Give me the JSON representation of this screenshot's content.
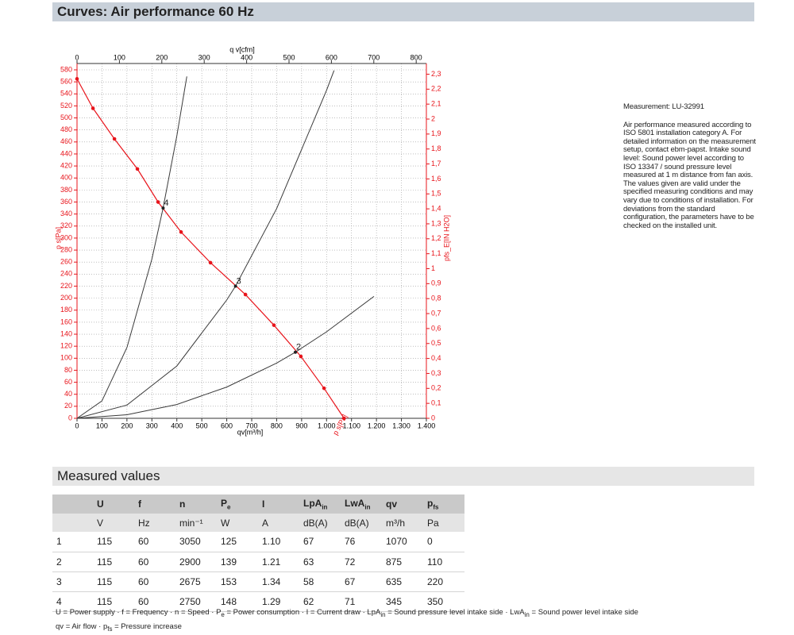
{
  "header": {
    "title": "Curves: Air performance 60 Hz"
  },
  "chart_data": {
    "type": "line",
    "x_label": "qv[m³/h]",
    "x2_label": "q v[cfm]",
    "y_label": "p s[Pa]",
    "y2_label": "pfs_E[IN H2O]",
    "xlim": [
      0,
      1400
    ],
    "xticks": [
      0,
      100,
      200,
      300,
      400,
      500,
      600,
      700,
      800,
      900,
      {
        "value": 1000,
        "label": "1.000"
      },
      {
        "value": 1100,
        "label": "1.100"
      },
      {
        "value": 1200,
        "label": "1.200"
      },
      {
        "value": 1300,
        "label": "1.300"
      },
      {
        "value": 1400,
        "label": "1.400"
      }
    ],
    "x2lim": [
      0,
      824
    ],
    "x2ticks": [
      0,
      100,
      200,
      300,
      400,
      500,
      600,
      700,
      800
    ],
    "ylim": [
      0,
      580
    ],
    "yticks": [
      0,
      20,
      40,
      60,
      80,
      100,
      120,
      140,
      160,
      180,
      200,
      220,
      240,
      260,
      280,
      300,
      320,
      340,
      360,
      380,
      400,
      420,
      440,
      460,
      480,
      500,
      520,
      540,
      560,
      580
    ],
    "y2lim": [
      0,
      2.329
    ],
    "y2ticks": [
      0,
      {
        "value": 0.1,
        "label": "0,1"
      },
      {
        "value": 0.2,
        "label": "0,2"
      },
      {
        "value": 0.3,
        "label": "0,3"
      },
      {
        "value": 0.4,
        "label": "0,4"
      },
      {
        "value": 0.5,
        "label": "0,5"
      },
      {
        "value": 0.6,
        "label": "0,6"
      },
      {
        "value": 0.7,
        "label": "0,7"
      },
      {
        "value": 0.8,
        "label": "0,8"
      },
      {
        "value": 0.9,
        "label": "0,9"
      },
      1,
      {
        "value": 1.1,
        "label": "1,1"
      },
      {
        "value": 1.2,
        "label": "1,2"
      },
      {
        "value": 1.3,
        "label": "1,3"
      },
      {
        "value": 1.4,
        "label": "1,4"
      },
      {
        "value": 1.5,
        "label": "1,5"
      },
      {
        "value": 1.6,
        "label": "1,6"
      },
      {
        "value": 1.7,
        "label": "1,7"
      },
      {
        "value": 1.8,
        "label": "1,8"
      },
      {
        "value": 1.9,
        "label": "1,9"
      },
      2,
      {
        "value": 2.1,
        "label": "2,1"
      },
      {
        "value": 2.2,
        "label": "2,2"
      },
      {
        "value": 2.3,
        "label": "2,3"
      }
    ],
    "grid": true,
    "series": [
      {
        "name": "p s[Pa]",
        "color": "#e8141b",
        "markers": true,
        "x": [
          0,
          64,
          150,
          242,
          325,
          417,
          535,
          675,
          789,
          897,
          990,
          1070
        ],
        "values": [
          565,
          516,
          465,
          415,
          360,
          310,
          259,
          206,
          155,
          103,
          50,
          0
        ]
      },
      {
        "color": "#3a3a3a",
        "x": [
          0,
          100,
          200,
          300,
          345,
          400,
          440
        ],
        "values": [
          0,
          29,
          118,
          265,
          350,
          470,
          569
        ]
      },
      {
        "color": "#3a3a3a",
        "x": [
          0,
          200,
          400,
          600,
          635,
          800,
          1000,
          1030
        ],
        "values": [
          0,
          22,
          87,
          197,
          220,
          349,
          546,
          579
        ]
      },
      {
        "color": "#3a3a3a",
        "x": [
          0,
          200,
          400,
          600,
          800,
          875,
          1000,
          1190
        ],
        "values": [
          0,
          6,
          23,
          52,
          92,
          110,
          144,
          203
        ]
      }
    ],
    "operating_points": [
      {
        "label": "4",
        "x": 345,
        "y": 350
      },
      {
        "label": "3",
        "x": 635,
        "y": 220
      },
      {
        "label": "2",
        "x": 875,
        "y": 110
      }
    ]
  },
  "notes": {
    "measurement": "Measurement: LU-32991",
    "text": "Air performance measured according to ISO 5801 installation category A. For detailed information on the measurement setup, contact ebm-papst. Intake sound level: Sound power level according to ISO 13347 / sound pressure level measured at 1 m distance from fan axis. The values given are valid under the specified measuring conditions and may vary due to conditions of installation. For deviations from the standard configuration, the parameters have to be checked on the installed unit."
  },
  "measured": {
    "title": "Measured values",
    "columns": [
      {
        "main": "U"
      },
      {
        "main": "f"
      },
      {
        "main": "n"
      },
      {
        "main": "P",
        "sub": "e"
      },
      {
        "main": "I"
      },
      {
        "main": "LpA",
        "sub": "in"
      },
      {
        "main": "LwA",
        "sub": "in"
      },
      {
        "main": "qv"
      },
      {
        "main": "p",
        "sub": "fs"
      }
    ],
    "units": [
      "V",
      "Hz",
      "min⁻¹",
      "W",
      "A",
      "dB(A)",
      "dB(A)",
      "m³/h",
      "Pa"
    ],
    "rows": [
      [
        "1",
        "115",
        "60",
        "3050",
        "125",
        "1.10",
        "67",
        "76",
        "1070",
        "0"
      ],
      [
        "2",
        "115",
        "60",
        "2900",
        "139",
        "1.21",
        "63",
        "72",
        "875",
        "110"
      ],
      [
        "3",
        "115",
        "60",
        "2675",
        "153",
        "1.34",
        "58",
        "67",
        "635",
        "220"
      ],
      [
        "4",
        "115",
        "60",
        "2750",
        "148",
        "1.29",
        "62",
        "71",
        "345",
        "350"
      ]
    ]
  },
  "legend": [
    [
      {
        "symbol": "U",
        "text": "= Power supply"
      },
      {
        "symbol": "f",
        "text": "= Frequency"
      },
      {
        "symbol": "n",
        "text": "= Speed"
      },
      {
        "symbol": "P",
        "sub": "e",
        "text": "= Power consumption"
      },
      {
        "symbol": "I",
        "text": "= Current draw"
      },
      {
        "symbol": "LpA",
        "sub": "in",
        "text": "= Sound pressure level intake side"
      },
      {
        "symbol": "LwA",
        "sub": "in",
        "text": "= Sound power level intake side"
      }
    ],
    [
      {
        "symbol": "qv",
        "text": "= Air flow"
      },
      {
        "symbol": "p",
        "sub": "fs",
        "text": "= Pressure increase"
      }
    ]
  ]
}
